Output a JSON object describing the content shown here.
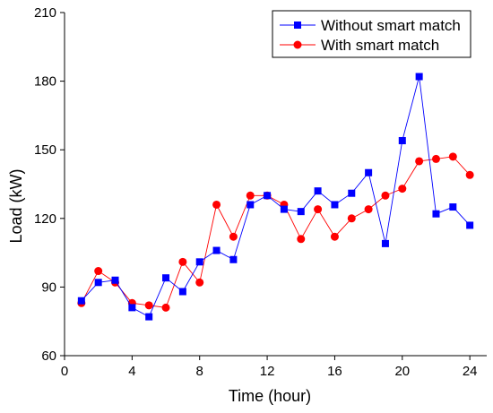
{
  "chart_data": {
    "type": "line",
    "xlabel": "Time (hour)",
    "ylabel": "Load (kW)",
    "xlim": [
      0,
      25
    ],
    "ylim": [
      60,
      210
    ],
    "xticks": [
      0,
      4,
      8,
      12,
      16,
      20,
      24
    ],
    "yticks": [
      60,
      90,
      120,
      150,
      180,
      210
    ],
    "grid": false,
    "legend_position": "top-right",
    "series": [
      {
        "name": "Without smart match",
        "color": "#0000ff",
        "marker": "square",
        "x": [
          1,
          2,
          3,
          4,
          5,
          6,
          7,
          8,
          9,
          10,
          11,
          12,
          13,
          14,
          15,
          16,
          17,
          18,
          19,
          20,
          21,
          22,
          23,
          24
        ],
        "values": [
          84,
          92,
          93,
          81,
          77,
          94,
          88,
          101,
          106,
          102,
          126,
          130,
          124,
          123,
          132,
          126,
          131,
          140,
          109,
          154,
          182,
          122,
          125,
          117
        ]
      },
      {
        "name": "With smart match",
        "color": "#ff0000",
        "marker": "circle",
        "x": [
          1,
          2,
          3,
          4,
          5,
          6,
          7,
          8,
          9,
          10,
          11,
          12,
          13,
          14,
          15,
          16,
          17,
          18,
          19,
          20,
          21,
          22,
          23,
          24
        ],
        "values": [
          83,
          97,
          92,
          83,
          82,
          81,
          101,
          92,
          126,
          112,
          130,
          130,
          126,
          111,
          124,
          112,
          120,
          124,
          130,
          133,
          145,
          146,
          147,
          139
        ]
      }
    ]
  }
}
